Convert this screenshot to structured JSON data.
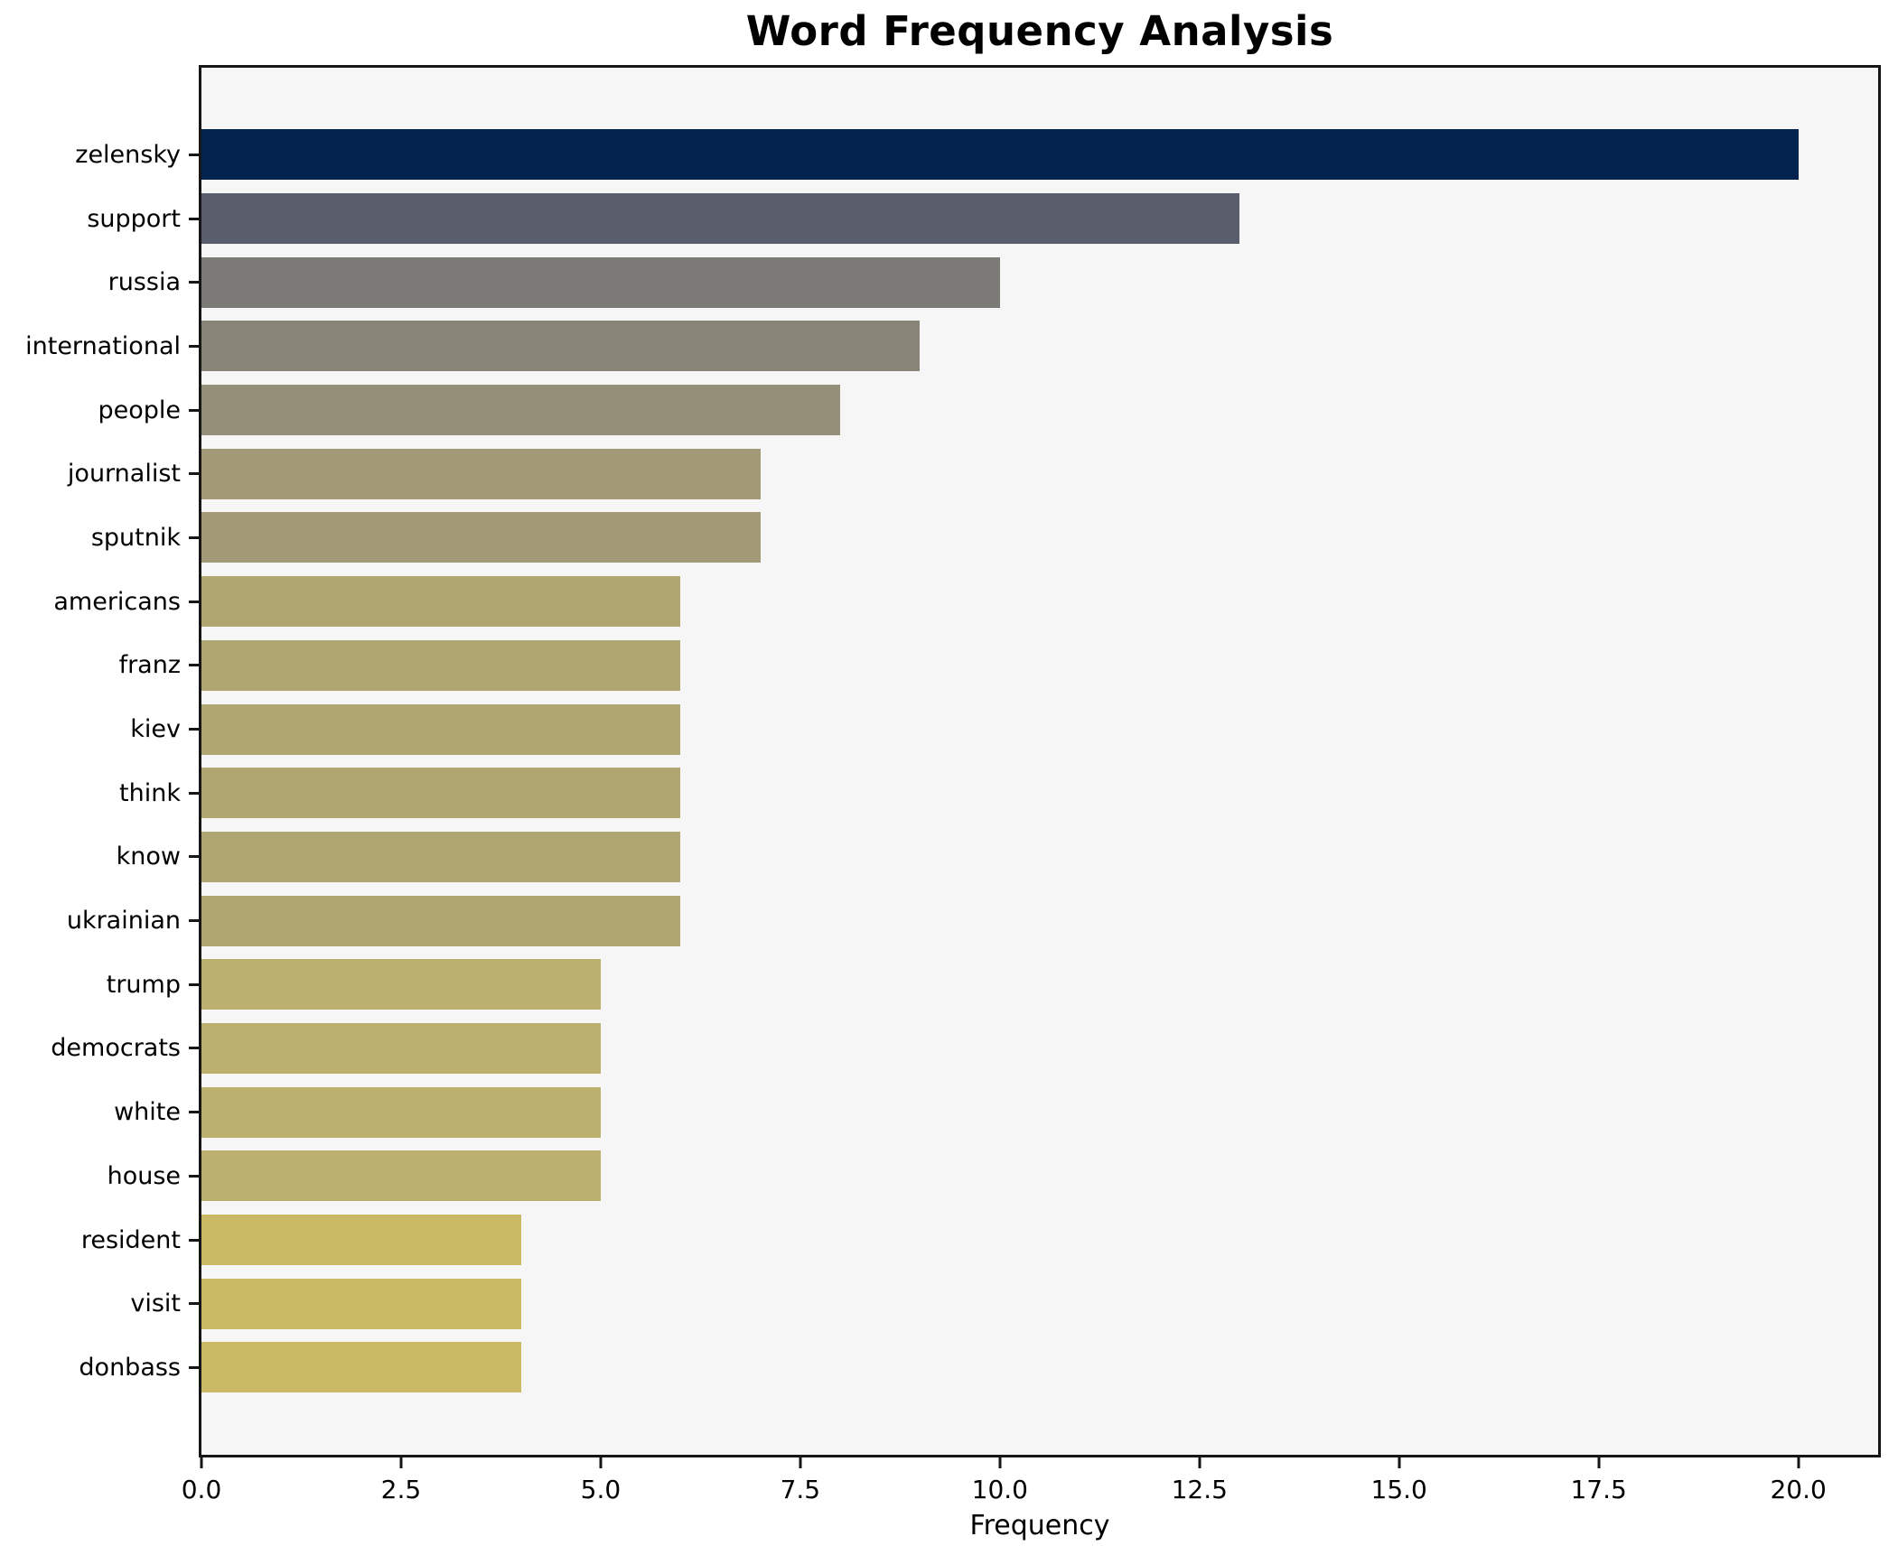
{
  "chart_data": {
    "type": "bar",
    "orientation": "horizontal",
    "title": "Word Frequency Analysis",
    "xlabel": "Frequency",
    "ylabel": "",
    "grid": false,
    "legend": "none",
    "xlim": [
      0,
      21
    ],
    "xticks": [
      0,
      2.5,
      5,
      7.5,
      10,
      12.5,
      15,
      17.5,
      20
    ],
    "xtick_labels": [
      "0.0",
      "2.5",
      "5.0",
      "7.5",
      "10.0",
      "12.5",
      "15.0",
      "17.5",
      "20.0"
    ],
    "categories": [
      "zelensky",
      "support",
      "russia",
      "international",
      "people",
      "journalist",
      "sputnik",
      "americans",
      "franz",
      "kiev",
      "think",
      "know",
      "ukrainian",
      "trump",
      "democrats",
      "white",
      "house",
      "resident",
      "visit",
      "donbass"
    ],
    "values": [
      20,
      13,
      10,
      9,
      8,
      7,
      7,
      6,
      6,
      6,
      6,
      6,
      6,
      5,
      5,
      5,
      5,
      4,
      4,
      4
    ],
    "bar_colors": [
      "#02234e",
      "#5a5e6c",
      "#7b7a76",
      "#888478",
      "#948f78",
      "#a29a76",
      "#a29a76",
      "#afa671",
      "#afa671",
      "#afa671",
      "#afa671",
      "#afa671",
      "#afa671",
      "#bcb06e",
      "#bcb06e",
      "#bcb06e",
      "#bcb06e",
      "#c9b965",
      "#c9b965",
      "#c9b965"
    ],
    "colors": {
      "figure_background": "#ffffff",
      "plot_background": "#f6f6f7",
      "axis_spine": "#161616",
      "text": "#000000"
    }
  }
}
